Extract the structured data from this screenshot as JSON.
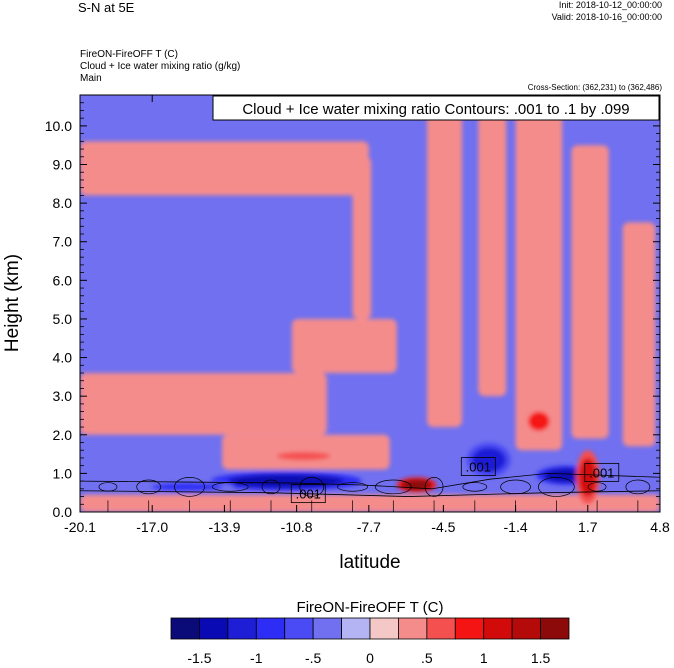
{
  "header": {
    "title": "S-N at 5E",
    "init": "Init: 2018-10-12_00:00:00",
    "valid": "Valid: 2018-10-16_00:00:00",
    "field1": "FireON-FireOFF T   (C)",
    "field2": "Cloud + Ice water mixing ratio   (g/kg)",
    "field3": "Main",
    "cross_section": "Cross-Section: (362,231) to (362,486)"
  },
  "contour_label": "Cloud + Ice water mixing ratio Contours: .001 to .1 by .099",
  "colorbar": {
    "title": "FireON-FireOFF T  (C)",
    "colors": [
      "#0a0a78",
      "#0a0ab4",
      "#1e1ed7",
      "#2d2df5",
      "#4b4bf5",
      "#7070f0",
      "#b4b4f5",
      "#f5c8c8",
      "#f58c8c",
      "#f55050",
      "#f51414",
      "#d20a0a",
      "#b40a0a",
      "#8c0a0a"
    ],
    "labels": [
      "-1.5",
      "-1",
      "-.5",
      "0",
      ".5",
      "1",
      "1.5"
    ],
    "label_edges": [
      1,
      3,
      5,
      7,
      9,
      11,
      13
    ]
  },
  "chart_data": {
    "type": "heatmap",
    "title": "S-N at 5E",
    "xlabel": "latitude",
    "ylabel": "Height (km)",
    "xlim": [
      -20.1,
      4.8
    ],
    "ylim": [
      0.0,
      10.8
    ],
    "xticks": [
      -20.1,
      -17.0,
      -13.9,
      -10.8,
      -7.7,
      -4.5,
      -1.4,
      1.7,
      4.8
    ],
    "xtick_labels": [
      "-20.1",
      "-17.0",
      "-13.9",
      "-10.8",
      "-7.7",
      "-4.5",
      "-1.4",
      "1.7",
      "4.8"
    ],
    "yticks": [
      0.0,
      1.0,
      2.0,
      3.0,
      4.0,
      5.0,
      6.0,
      7.0,
      8.0,
      9.0,
      10.0
    ],
    "ytick_labels": [
      "0.0",
      "1.0",
      "2.0",
      "3.0",
      "4.0",
      "5.0",
      "6.0",
      "7.0",
      "8.0",
      "9.0",
      "10.0"
    ],
    "background_value": -0.3,
    "warm_regions": [
      {
        "x": [
          -20.1,
          -9.5
        ],
        "y": [
          2.0,
          3.6
        ],
        "value": 0.3
      },
      {
        "x": [
          -14.0,
          -6.8
        ],
        "y": [
          1.1,
          2.0
        ],
        "value": 0.3
      },
      {
        "x": [
          -11.0,
          -6.5
        ],
        "y": [
          3.6,
          5.0
        ],
        "value": 0.3
      },
      {
        "x": [
          -8.4,
          -7.6
        ],
        "y": [
          5.0,
          9.2
        ],
        "value": 0.3
      },
      {
        "x": [
          -5.2,
          -3.7
        ],
        "y": [
          2.2,
          10.5
        ],
        "value": 0.3
      },
      {
        "x": [
          -3.0,
          -1.8
        ],
        "y": [
          3.0,
          10.5
        ],
        "value": 0.3
      },
      {
        "x": [
          -1.4,
          0.6
        ],
        "y": [
          1.6,
          10.5
        ],
        "value": 0.3
      },
      {
        "x": [
          1.0,
          2.6
        ],
        "y": [
          1.9,
          9.5
        ],
        "value": 0.3
      },
      {
        "x": [
          3.2,
          4.6
        ],
        "y": [
          1.7,
          7.5
        ],
        "value": 0.3
      },
      {
        "x": [
          -20.1,
          -7.7
        ],
        "y": [
          8.2,
          9.6
        ],
        "value": 0.3
      },
      {
        "x": [
          -20.1,
          4.8
        ],
        "y": [
          0.0,
          0.45
        ],
        "value": 0.3
      }
    ],
    "strong_anomalies": [
      {
        "x": [
          -14.5,
          -8.0
        ],
        "y": [
          0.55,
          1.05
        ],
        "value": -1.4
      },
      {
        "x": [
          -17.5,
          -13.5
        ],
        "y": [
          0.5,
          0.8
        ],
        "value": -0.8
      },
      {
        "x": [
          -12.0,
          -9.0
        ],
        "y": [
          1.3,
          1.6
        ],
        "value": 0.6
      },
      {
        "x": [
          -6.5,
          -4.8
        ],
        "y": [
          0.5,
          0.9
        ],
        "value": 1.5
      },
      {
        "x": [
          -3.5,
          -1.6
        ],
        "y": [
          0.9,
          1.8
        ],
        "value": -1.2
      },
      {
        "x": [
          -0.5,
          2.0
        ],
        "y": [
          0.7,
          1.2
        ],
        "value": -1.3
      },
      {
        "x": [
          -1.0,
          0.2
        ],
        "y": [
          2.0,
          2.7
        ],
        "value": 0.8
      },
      {
        "x": [
          1.2,
          2.2
        ],
        "y": [
          0.2,
          1.6
        ],
        "value": 1.0
      }
    ],
    "contour_labels": [
      {
        "text": ".001",
        "x": -10.3,
        "y": 0.45
      },
      {
        "text": ".001",
        "x": -3.0,
        "y": 1.15
      },
      {
        "text": ".001",
        "x": 2.3,
        "y": 1.0
      }
    ]
  }
}
